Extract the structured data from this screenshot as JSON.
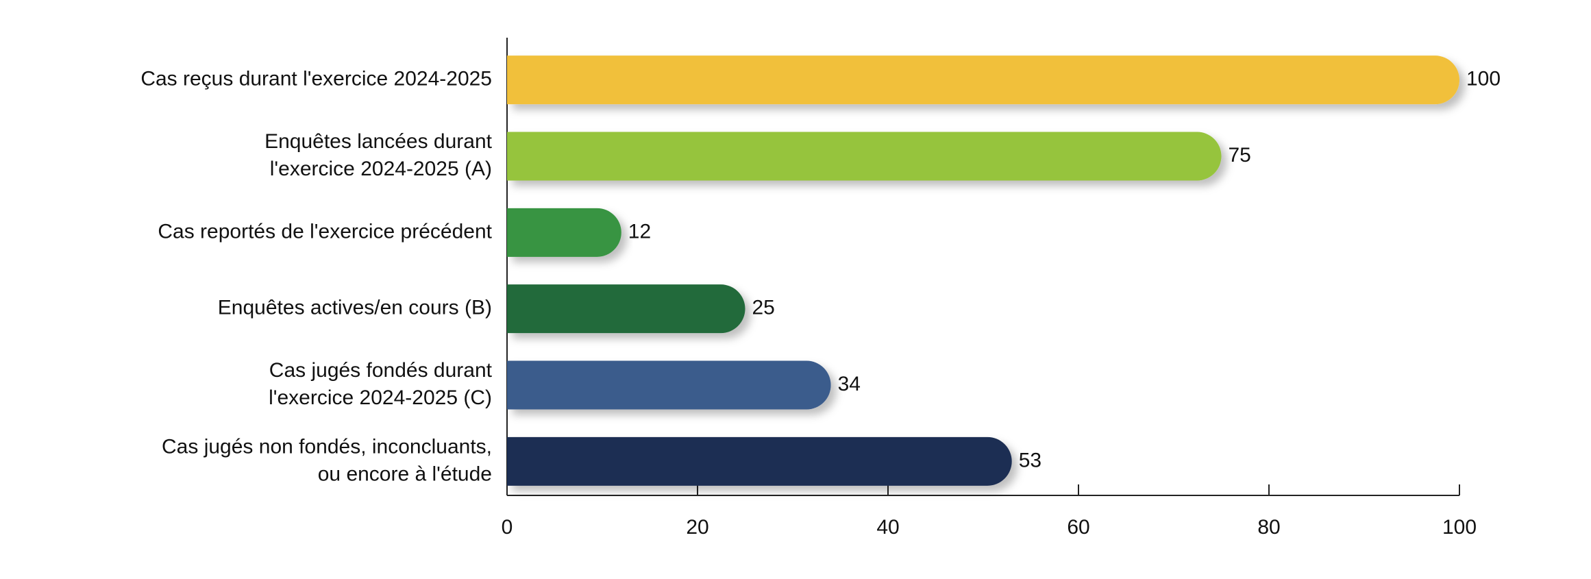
{
  "chart_data": {
    "type": "bar",
    "orientation": "horizontal",
    "categories": [
      [
        "Cas reçus durant l'exercice 2024-2025"
      ],
      [
        "Enquêtes lancées durant",
        "l'exercice 2024-2025 (A)"
      ],
      [
        "Cas reportés de l'exercice précédent"
      ],
      [
        "Enquêtes actives/en cours (B)"
      ],
      [
        "Cas jugés fondés durant",
        "l'exercice 2024-2025 (C)"
      ],
      [
        "Cas jugés non fondés, inconcluants,",
        "ou encore à l'étude"
      ]
    ],
    "values": [
      100,
      75,
      12,
      25,
      34,
      53
    ],
    "colors": [
      "#f1c03b",
      "#96c43c",
      "#379442",
      "#236a3a",
      "#3b5b8c",
      "#1e2f52"
    ],
    "xlim": [
      0,
      100
    ],
    "xticks": [
      0,
      20,
      40,
      60,
      80,
      100
    ],
    "grid": false
  }
}
